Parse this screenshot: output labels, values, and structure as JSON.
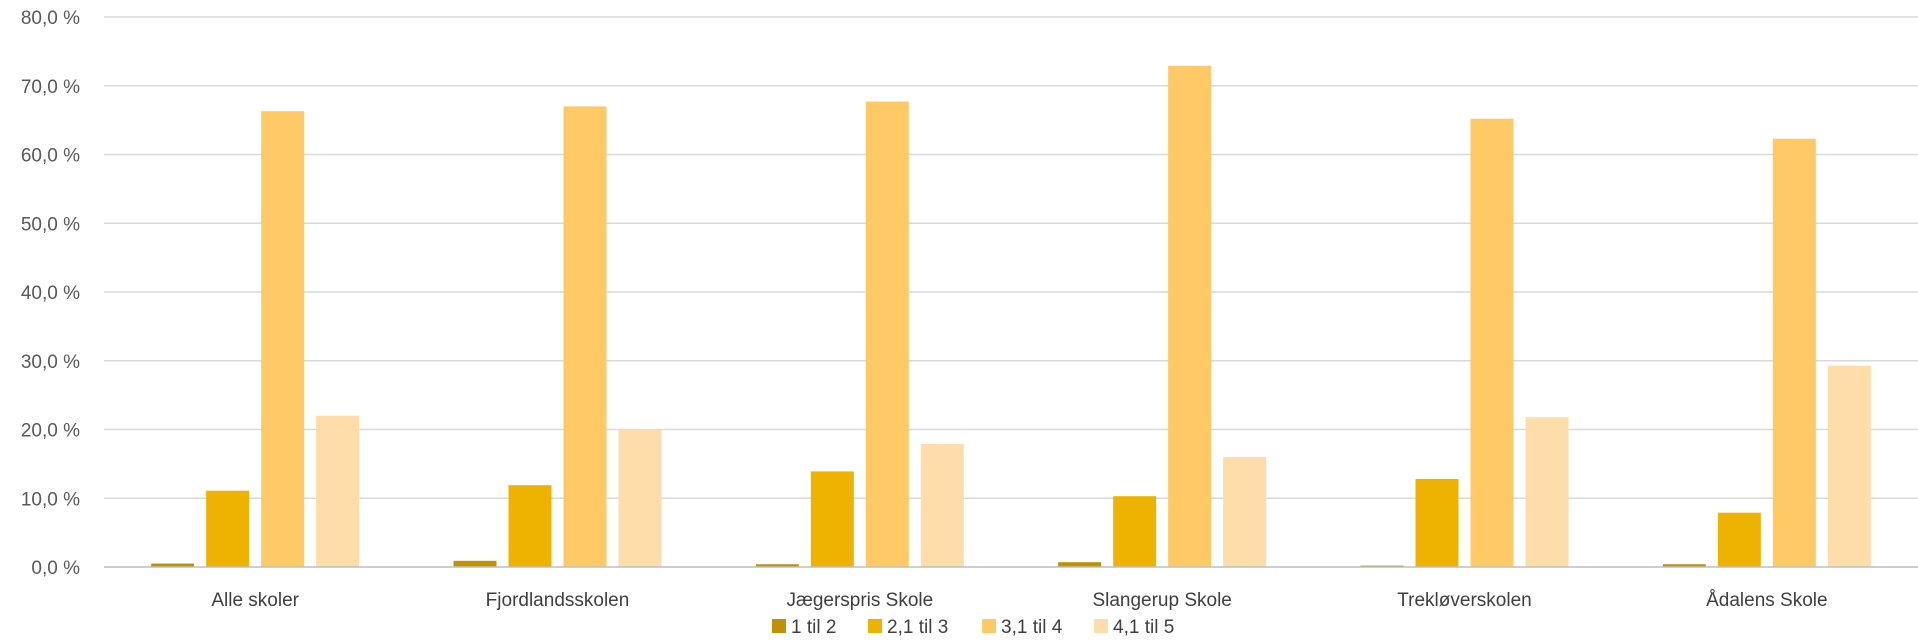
{
  "chart_data": {
    "type": "bar",
    "title": "",
    "xlabel": "",
    "ylabel": "",
    "ylim": [
      0,
      80
    ],
    "yticks": [
      0,
      10,
      20,
      30,
      40,
      50,
      60,
      70,
      80
    ],
    "ytick_labels": [
      "0,0 %",
      "10,0 %",
      "20,0 %",
      "30,0 %",
      "40,0 %",
      "50,0 %",
      "60,0 %",
      "70,0 %",
      "80,0 %"
    ],
    "grid": true,
    "legend_position": "bottom",
    "categories": [
      "Alle skoler",
      "Fjordlandsskolen",
      "Jægerspris Skole",
      "Slangerup Skole",
      "Trekløverskolen",
      "Ådalens Skole"
    ],
    "series": [
      {
        "name": "1 til 2",
        "color": "#C09100",
        "values": [
          0.5,
          0.9,
          0.4,
          0.7,
          0.2,
          0.4
        ]
      },
      {
        "name": "2,1 til 3",
        "color": "#EDB300",
        "values": [
          11.1,
          11.9,
          13.9,
          10.3,
          12.8,
          7.9
        ]
      },
      {
        "name": "3,1 til 4",
        "color": "#FFC966",
        "values": [
          66.3,
          67.0,
          67.7,
          72.9,
          65.2,
          62.3
        ]
      },
      {
        "name": "4,1 til 5",
        "color": "#FFDDAA",
        "values": [
          22.0,
          20.0,
          17.9,
          16.0,
          21.8,
          29.3
        ]
      }
    ],
    "colors": {
      "gridline": "#D9D9D9",
      "axis": "#BFBFBF"
    }
  }
}
